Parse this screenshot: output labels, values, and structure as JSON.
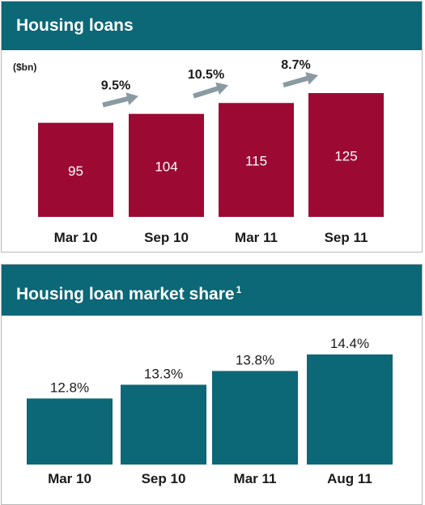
{
  "panels": [
    {
      "header": "Housing loans",
      "unit": "($bn)"
    },
    {
      "header": "Housing loan market share",
      "footnote": "1"
    }
  ],
  "colors": {
    "header_bg": "#0c6776",
    "loans_bar": "#9c0a34",
    "share_bar": "#0c6776",
    "arrow": "#8a9aa2"
  },
  "chart_data": [
    {
      "type": "bar",
      "title": "Housing loans",
      "ylabel": "($bn)",
      "categories": [
        "Mar 10",
        "Sep 10",
        "Mar 11",
        "Sep 11"
      ],
      "values": [
        95,
        104,
        115,
        125
      ],
      "growth_labels": [
        "9.5%",
        "10.5%",
        "8.7%"
      ],
      "ylim": [
        0,
        125
      ],
      "grid": false
    },
    {
      "type": "bar",
      "title": "Housing loan market share",
      "categories": [
        "Mar 10",
        "Sep 10",
        "Mar 11",
        "Aug 11"
      ],
      "values": [
        12.8,
        13.3,
        13.8,
        14.4
      ],
      "value_labels": [
        "12.8%",
        "13.3%",
        "13.8%",
        "14.4%"
      ],
      "ylim": [
        10.4,
        14.4
      ],
      "grid": false
    }
  ]
}
